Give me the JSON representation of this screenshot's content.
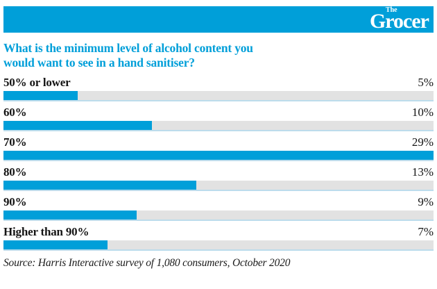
{
  "brand": {
    "logo_the": "The",
    "logo_main": "Grocer",
    "header_bg": "#009fd9",
    "logo_text_color": "#ffffff"
  },
  "title": {
    "line1": "What is the minimum level of alcohol content you",
    "line2": "would want to see in a hand sanitiser?",
    "color": "#009fd9"
  },
  "chart_data": {
    "type": "bar",
    "orientation": "horizontal",
    "title": "What is the minimum level of alcohol content you would want to see in a hand sanitiser?",
    "categories": [
      "50% or lower",
      "60%",
      "70%",
      "80%",
      "90%",
      "Higher than 90%"
    ],
    "values": [
      5,
      10,
      29,
      13,
      9,
      7
    ],
    "value_labels": [
      "5%",
      "10%",
      "29%",
      "13%",
      "9%",
      "7%"
    ],
    "unit": "%",
    "max_value": 29,
    "xlim": [
      0,
      29
    ],
    "grid": false,
    "legend": false,
    "bar_color": "#009fd9",
    "track_color": "#e2e2e2",
    "track_underline_color": "#bcdcec",
    "label_color": "#141414"
  },
  "source": "Source: Harris Interactive survey of 1,080 consumers, October 2020"
}
